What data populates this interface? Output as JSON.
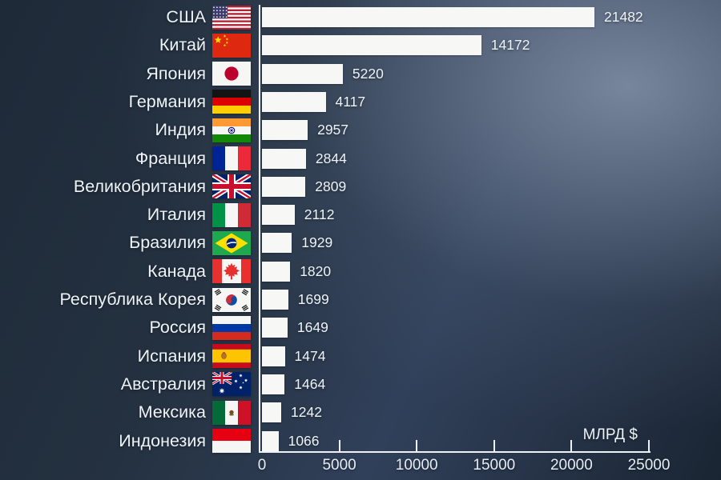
{
  "chart_data": {
    "type": "bar",
    "orientation": "horizontal",
    "title": "",
    "unit_label": "МЛРД $",
    "categories": [
      "США",
      "Китай",
      "Япония",
      "Германия",
      "Индия",
      "Франция",
      "Великобритания",
      "Италия",
      "Бразилия",
      "Канада",
      "Республика Корея",
      "Россия",
      "Испания",
      "Австралия",
      "Мексика",
      "Индонезия"
    ],
    "values": [
      21482,
      14172,
      5220,
      4117,
      2957,
      2844,
      2809,
      2112,
      1929,
      1820,
      1699,
      1649,
      1474,
      1464,
      1242,
      1066
    ],
    "flag_icons": [
      "usa-flag-icon",
      "china-flag-icon",
      "japan-flag-icon",
      "germany-flag-icon",
      "india-flag-icon",
      "france-flag-icon",
      "uk-flag-icon",
      "italy-flag-icon",
      "brazil-flag-icon",
      "canada-flag-icon",
      "south-korea-flag-icon",
      "russia-flag-icon",
      "spain-flag-icon",
      "australia-flag-icon",
      "mexico-flag-icon",
      "indonesia-flag-icon"
    ],
    "flag_codes": [
      "us",
      "cn",
      "jp",
      "de",
      "in",
      "fr",
      "gb",
      "it",
      "br",
      "ca",
      "kr",
      "ru",
      "es",
      "au",
      "mx",
      "id"
    ],
    "xlim": [
      0,
      25000
    ],
    "x_ticks": [
      "0",
      "5000",
      "10000",
      "15000",
      "20000",
      "25000"
    ],
    "x_tick_values": [
      0,
      5000,
      10000,
      15000,
      20000,
      25000
    ],
    "grid": false,
    "legend_position": "none",
    "bar_color": "#f7f8f6",
    "axis_color": "#eef2f6",
    "label_color": "#eef3f8",
    "background_dark": "#1e2a38",
    "background_light": "#6e7c94"
  }
}
